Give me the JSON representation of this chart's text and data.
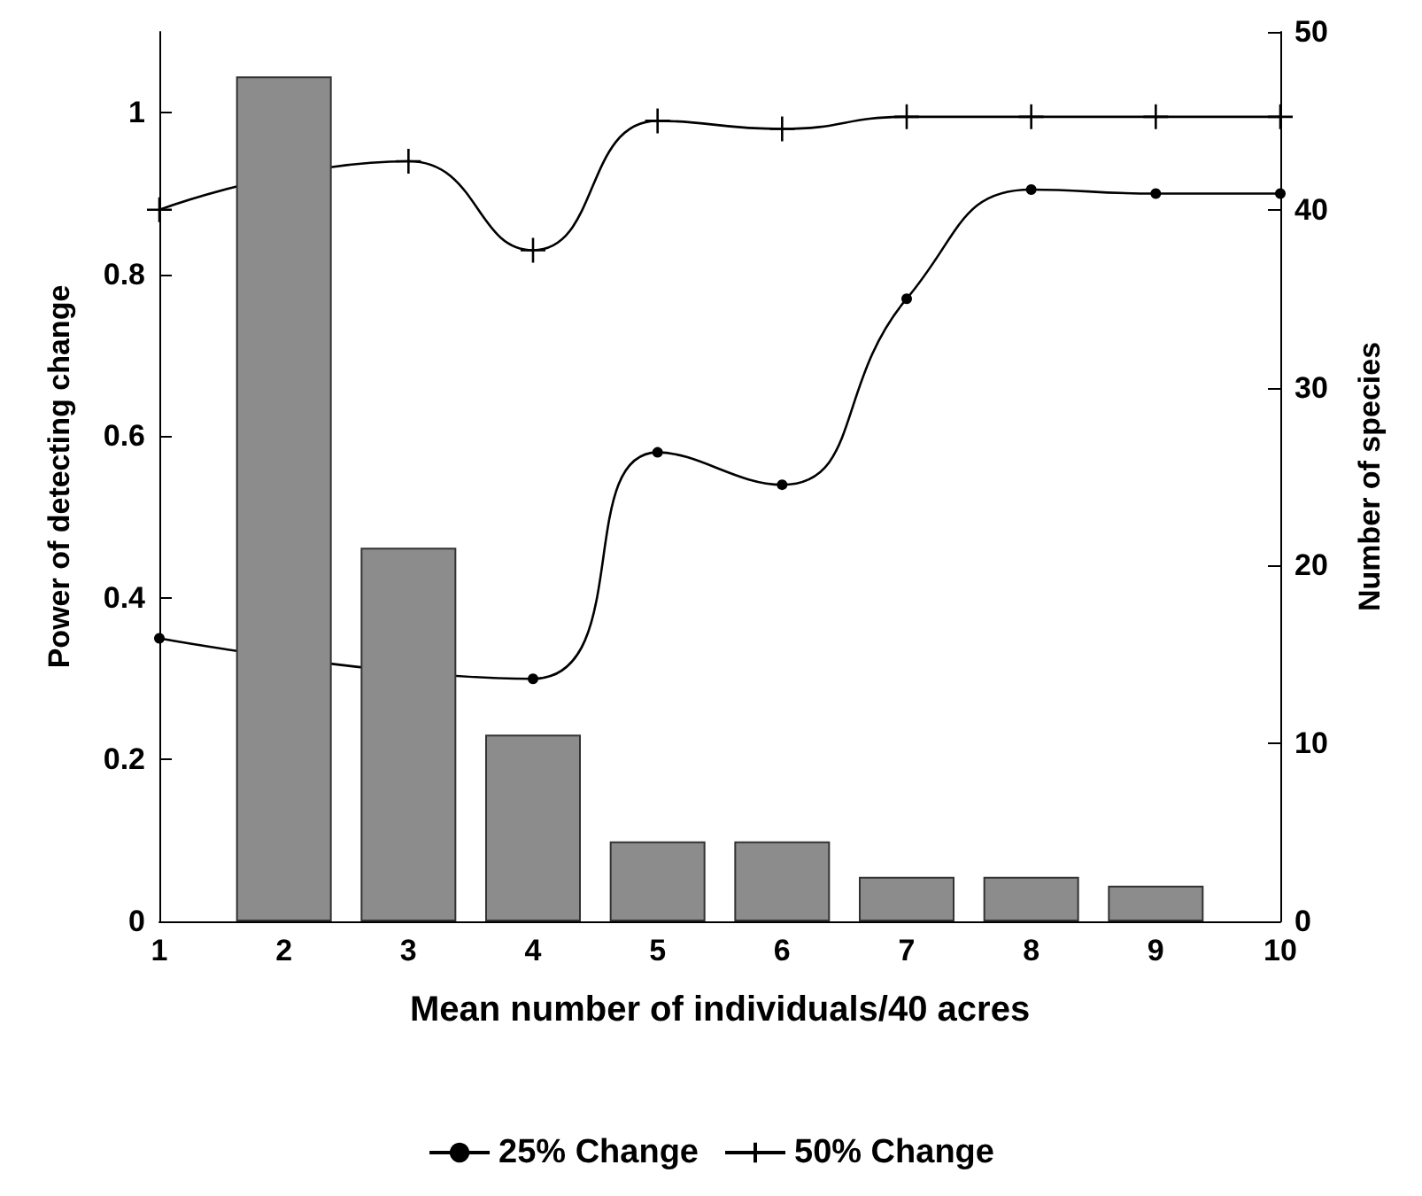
{
  "chart_data": {
    "type": "line",
    "xlabel": "Mean number of individuals/40 acres",
    "ylabel": "Power of detecting change",
    "y2label": "Number of species",
    "xlim": [
      1,
      10
    ],
    "xticks": [
      1,
      2,
      3,
      4,
      5,
      6,
      7,
      8,
      9,
      10
    ],
    "ylim": [
      0,
      1.1
    ],
    "yticks": [
      0,
      0.2,
      0.4,
      0.6,
      0.8,
      1
    ],
    "y2lim": [
      0,
      50
    ],
    "y2ticks": [
      0,
      10,
      20,
      30,
      40,
      50
    ],
    "grid": false,
    "legend": "bottom",
    "series": [
      {
        "type": "bar",
        "axis": "y2",
        "color": "#8c8c8c",
        "x": [
          2,
          3,
          4,
          5,
          6,
          7,
          8,
          9
        ],
        "values": [
          47.5,
          21,
          10.5,
          4.5,
          4.5,
          2.5,
          2.5,
          2
        ]
      },
      {
        "name": "25% Change",
        "color": "#000000",
        "marker": "circle",
        "x": [
          1,
          2,
          3,
          4,
          5,
          6,
          7,
          8,
          9,
          10
        ],
        "values": [
          0.35,
          null,
          null,
          0.3,
          0.58,
          0.54,
          0.77,
          0.905,
          0.9,
          0.9
        ]
      },
      {
        "name": "50% Change",
        "color": "#000000",
        "marker": "cross",
        "x": [
          1,
          2,
          3,
          4,
          5,
          6,
          7,
          8,
          9,
          10
        ],
        "values": [
          0.88,
          null,
          0.94,
          0.83,
          0.99,
          0.98,
          0.995,
          0.995,
          0.995,
          0.995
        ]
      }
    ]
  }
}
